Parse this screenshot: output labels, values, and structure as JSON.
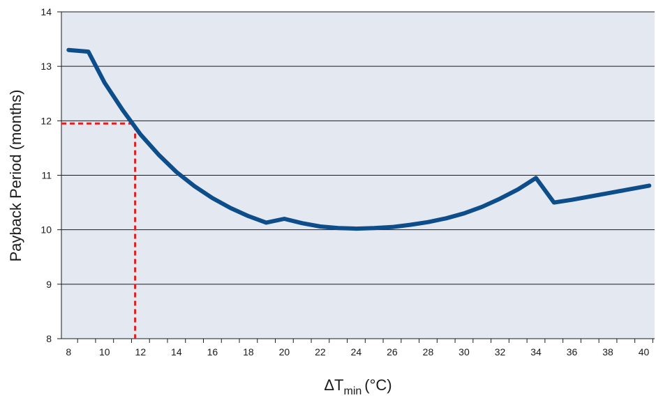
{
  "chart_data": {
    "type": "line",
    "title": "",
    "xlabel": "ΔT",
    "xlabel_subscript": "min",
    "xlabel_unit": "(°C)",
    "ylabel": "Payback Period (months)",
    "xlim": [
      7.6,
      40.6
    ],
    "ylim": [
      8,
      14
    ],
    "x_ticks": [
      8,
      10,
      12,
      14,
      16,
      18,
      20,
      22,
      24,
      26,
      28,
      30,
      32,
      34,
      36,
      38,
      40
    ],
    "y_ticks": [
      8,
      9,
      10,
      11,
      12,
      13,
      14
    ],
    "grid": "horizontal",
    "legend": "none",
    "series": [
      {
        "color": "#0d4d8a",
        "x": [
          8,
          9.1,
          10,
          11,
          12,
          13,
          14,
          15,
          16,
          17,
          18,
          19,
          20,
          21,
          22,
          23,
          24,
          25,
          26,
          27,
          28,
          29,
          30,
          31,
          32,
          33,
          34,
          35,
          36,
          37,
          38,
          39,
          40.3
        ],
        "y": [
          13.3,
          13.27,
          12.7,
          12.2,
          11.75,
          11.38,
          11.06,
          10.8,
          10.58,
          10.4,
          10.25,
          10.13,
          10.2,
          10.12,
          10.06,
          10.03,
          10.02,
          10.03,
          10.05,
          10.09,
          10.14,
          10.21,
          10.3,
          10.42,
          10.57,
          10.74,
          10.95,
          10.5,
          10.55,
          10.61,
          10.67,
          10.73,
          10.81
        ]
      }
    ],
    "annotations": [
      {
        "type": "dashed-crosshair",
        "x": 11.7,
        "y": 11.95,
        "color": "#e02020"
      }
    ],
    "colors": {
      "plot_background": "#e4e8f1",
      "gridline": "#1a1a1a",
      "axis": "#1a1a1a"
    }
  }
}
